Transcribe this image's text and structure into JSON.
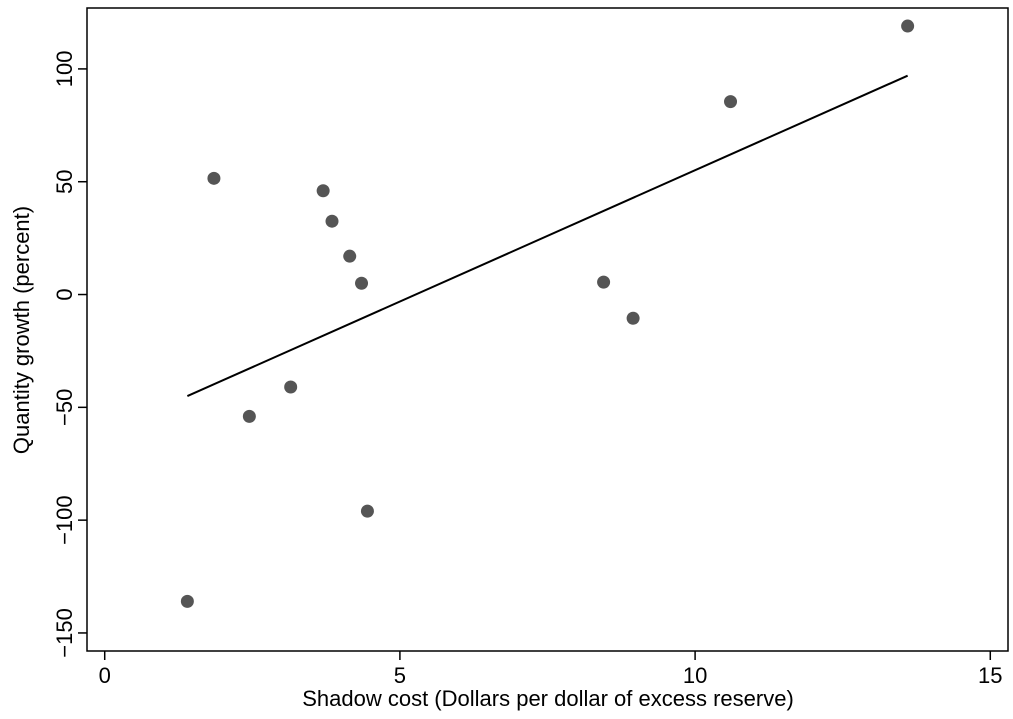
{
  "chart_data": {
    "type": "scatter",
    "xlabel": "Shadow cost (Dollars per dollar of excess reserve)",
    "ylabel": "Quantity growth (percent)",
    "xlim": [
      -0.3,
      15.3
    ],
    "ylim": [
      -158,
      127
    ],
    "x_ticks": [
      0,
      5,
      10,
      15
    ],
    "x_tick_labels": [
      "0",
      "5",
      "10",
      "15"
    ],
    "y_ticks": [
      -150,
      -100,
      -50,
      0,
      50,
      100
    ],
    "y_tick_labels": [
      "−150",
      "−100",
      "−50",
      "0",
      "50",
      "100"
    ],
    "grid": false,
    "legend": "none",
    "series": [
      {
        "kind": "points",
        "color": "#555555",
        "x": [
          1.4,
          1.85,
          2.45,
          3.15,
          3.7,
          3.85,
          4.15,
          4.35,
          4.45,
          8.45,
          8.95,
          10.6,
          13.6
        ],
        "y": [
          -136,
          51.5,
          -54,
          -41,
          46,
          32.5,
          17,
          5,
          -96,
          5.5,
          -10.5,
          85.5,
          119
        ]
      },
      {
        "kind": "fit-line",
        "color": "#000000",
        "x": [
          1.4,
          13.6
        ],
        "y": [
          -45,
          97
        ]
      }
    ]
  }
}
